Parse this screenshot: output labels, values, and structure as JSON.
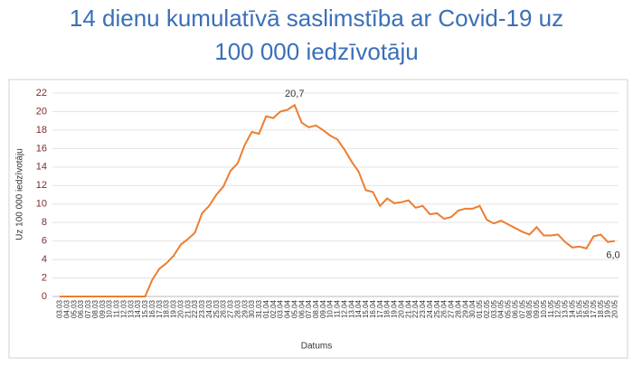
{
  "chart_data": {
    "type": "line",
    "title": [
      "14 dienu kumulatīvā saslimstība ar Covid-19 uz",
      "100 000 iedzīvotāju"
    ],
    "x_label": "Datums",
    "y_label": "Uz 100 000 iedzīvotāju",
    "categories": [
      "03.03",
      "04.03",
      "05.03",
      "06.03",
      "07.03",
      "08.03",
      "09.03",
      "10.03",
      "11.03",
      "12.03",
      "13.03",
      "14.03",
      "15.03",
      "16.03",
      "17.03",
      "18.03",
      "19.03",
      "20.03",
      "21.03",
      "22.03",
      "23.03",
      "24.03",
      "25.03",
      "26.03",
      "27.03",
      "28.03",
      "29.03",
      "30.03",
      "31.03",
      "01.04",
      "02.04",
      "03.04",
      "04.04",
      "05.04",
      "06.04",
      "07.04",
      "08.04",
      "09.04",
      "10.04",
      "11.04",
      "12.04",
      "13.04",
      "14.04",
      "15.04",
      "16.04",
      "17.04",
      "18.04",
      "19.04",
      "20.04",
      "21.04",
      "22.04",
      "23.04",
      "24.04",
      "25.04",
      "26.04",
      "27.04",
      "28.04",
      "29.04",
      "30.04",
      "01.05",
      "02.05",
      "03.05",
      "04.05",
      "05.05",
      "06.05",
      "07.05",
      "08.05",
      "09.05",
      "10.05",
      "11.05",
      "12.05",
      "13.05",
      "14.05",
      "15.05",
      "16.05",
      "17.05",
      "18.05",
      "19.05",
      "20.05"
    ],
    "series": [
      {
        "name": "Uz 100 000 iedzīvotāju",
        "color": "#ed7d31",
        "values": [
          0,
          0,
          0,
          0,
          0,
          0,
          0,
          0,
          0,
          0,
          0,
          0,
          0,
          1.8,
          3.0,
          3.6,
          4.4,
          5.6,
          6.2,
          6.9,
          9.0,
          9.8,
          11.0,
          11.9,
          13.6,
          14.4,
          16.4,
          17.8,
          17.6,
          19.5,
          19.3,
          20.0,
          20.2,
          20.7,
          18.8,
          18.3,
          18.5,
          18.0,
          17.4,
          17.0,
          15.9,
          14.6,
          13.5,
          11.5,
          11.3,
          9.8,
          10.6,
          10.1,
          10.2,
          10.4,
          9.6,
          9.8,
          8.9,
          9.0,
          8.4,
          8.6,
          9.3,
          9.5,
          9.5,
          9.8,
          8.3,
          7.9,
          8.2,
          7.8,
          7.4,
          7.0,
          6.7,
          7.5,
          6.6,
          6.6,
          6.7,
          5.9,
          5.3,
          5.4,
          5.2,
          6.5,
          6.7,
          5.9,
          6.0
        ],
        "value_labels": [
          null,
          null,
          null,
          null,
          null,
          null,
          null,
          null,
          null,
          null,
          null,
          null,
          null,
          null,
          null,
          null,
          null,
          null,
          null,
          null,
          null,
          null,
          null,
          null,
          null,
          null,
          null,
          null,
          null,
          null,
          null,
          null,
          null,
          "20,7",
          null,
          null,
          null,
          null,
          null,
          null,
          null,
          null,
          null,
          null,
          null,
          null,
          null,
          null,
          null,
          null,
          null,
          null,
          null,
          null,
          null,
          null,
          null,
          null,
          null,
          null,
          null,
          null,
          null,
          null,
          null,
          null,
          null,
          null,
          null,
          null,
          null,
          null,
          null,
          null,
          null,
          null,
          null,
          null,
          "6,0"
        ]
      }
    ],
    "ylim": [
      0,
      22
    ],
    "yticks": [
      0,
      2,
      4,
      6,
      8,
      10,
      12,
      14,
      16,
      18,
      20,
      22
    ],
    "grid": true
  }
}
